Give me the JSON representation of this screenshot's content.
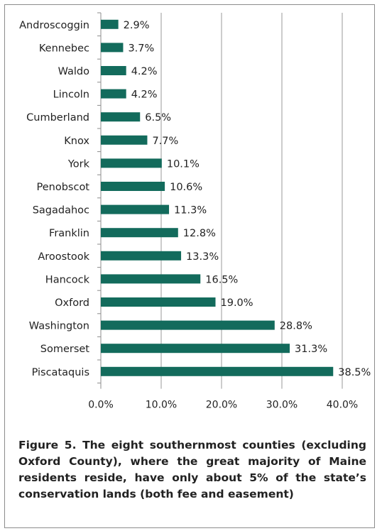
{
  "chart_data": {
    "type": "bar",
    "orientation": "horizontal",
    "categories": [
      "Androscoggin",
      "Kennebec",
      "Waldo",
      "Lincoln",
      "Cumberland",
      "Knox",
      "York",
      "Penobscot",
      "Sagadahoc",
      "Franklin",
      "Aroostook",
      "Hancock",
      "Oxford",
      "Washington",
      "Somerset",
      "Piscataquis"
    ],
    "values": [
      2.9,
      3.7,
      4.2,
      4.2,
      6.5,
      7.7,
      10.1,
      10.6,
      11.3,
      12.8,
      13.3,
      16.5,
      19.0,
      28.8,
      31.3,
      38.5
    ],
    "data_labels": [
      "2.9%",
      "3.7%",
      "4.2%",
      "4.2%",
      "6.5%",
      "7.7%",
      "10.1%",
      "10.6%",
      "11.3%",
      "12.8%",
      "13.3%",
      "16.5%",
      "19.0%",
      "28.8%",
      "31.3%",
      "38.5%"
    ],
    "xlim": [
      0,
      40
    ],
    "x_ticks": [
      0,
      10,
      20,
      30,
      40
    ],
    "x_tick_labels": [
      "0.0%",
      "10.0%",
      "20.0%",
      "30.0%",
      "40.0%"
    ],
    "grid": "vertical",
    "bar_color": "#136b5c",
    "grid_color": "#9a9a9a",
    "title": "",
    "xlabel": "",
    "ylabel": ""
  },
  "caption": "Figure 5. The eight southernmost counties (excluding Oxford County), where the great majority of Maine residents reside, have only about 5% of the state’s conservation lands (both fee and easement)"
}
